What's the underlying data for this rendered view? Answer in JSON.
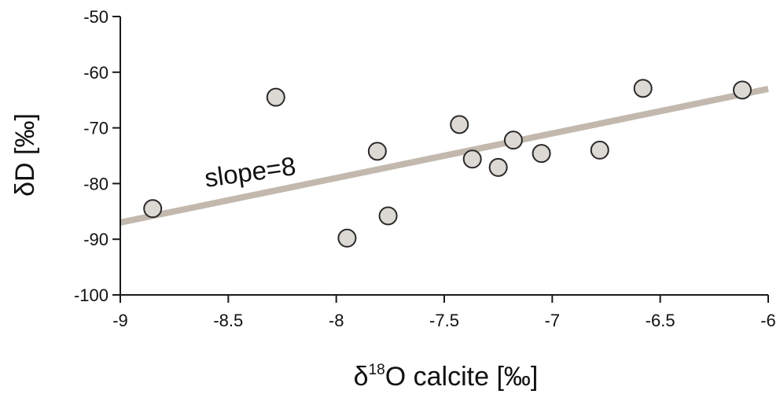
{
  "chart_data": {
    "type": "scatter",
    "title": "",
    "xlabel": "δ18O calcite [‰]",
    "xlabel_parts": {
      "delta": "δ",
      "superscript": "18",
      "rest": "O calcite [‰]"
    },
    "ylabel": "δD [‰]",
    "xlim": [
      -9,
      -6
    ],
    "ylim": [
      -100,
      -50
    ],
    "xticks": [
      -9,
      -8.5,
      -8,
      -7.5,
      -7,
      -6.5,
      -6
    ],
    "xtick_labels": [
      "-9",
      "-8.5",
      "-8",
      "-7.5",
      "-7",
      "-6.5",
      "-6"
    ],
    "yticks": [
      -100,
      -90,
      -80,
      -70,
      -60,
      -50
    ],
    "ytick_labels": [
      "-100",
      "-90",
      "-80",
      "-70",
      "-60",
      "-50"
    ],
    "grid": false,
    "points": [
      {
        "x": -8.85,
        "y": -84.5
      },
      {
        "x": -8.28,
        "y": -64.5
      },
      {
        "x": -7.95,
        "y": -89.8
      },
      {
        "x": -7.81,
        "y": -74.2
      },
      {
        "x": -7.76,
        "y": -85.8
      },
      {
        "x": -7.43,
        "y": -69.4
      },
      {
        "x": -7.37,
        "y": -75.6
      },
      {
        "x": -7.25,
        "y": -77.1
      },
      {
        "x": -7.18,
        "y": -72.2
      },
      {
        "x": -7.05,
        "y": -74.6
      },
      {
        "x": -6.78,
        "y": -74.0
      },
      {
        "x": -6.58,
        "y": -62.9
      },
      {
        "x": -6.12,
        "y": -63.2
      }
    ],
    "trend_line": {
      "x": [
        -9,
        -6
      ],
      "y": [
        -87,
        -63
      ],
      "slope": 8
    },
    "annotation": "slope=8",
    "colors": {
      "marker_fill": "#dcd8d3",
      "marker_edge": "#2a2a2a",
      "trend_line": "#c2b8ad",
      "axis": "#1a1a1a"
    }
  }
}
